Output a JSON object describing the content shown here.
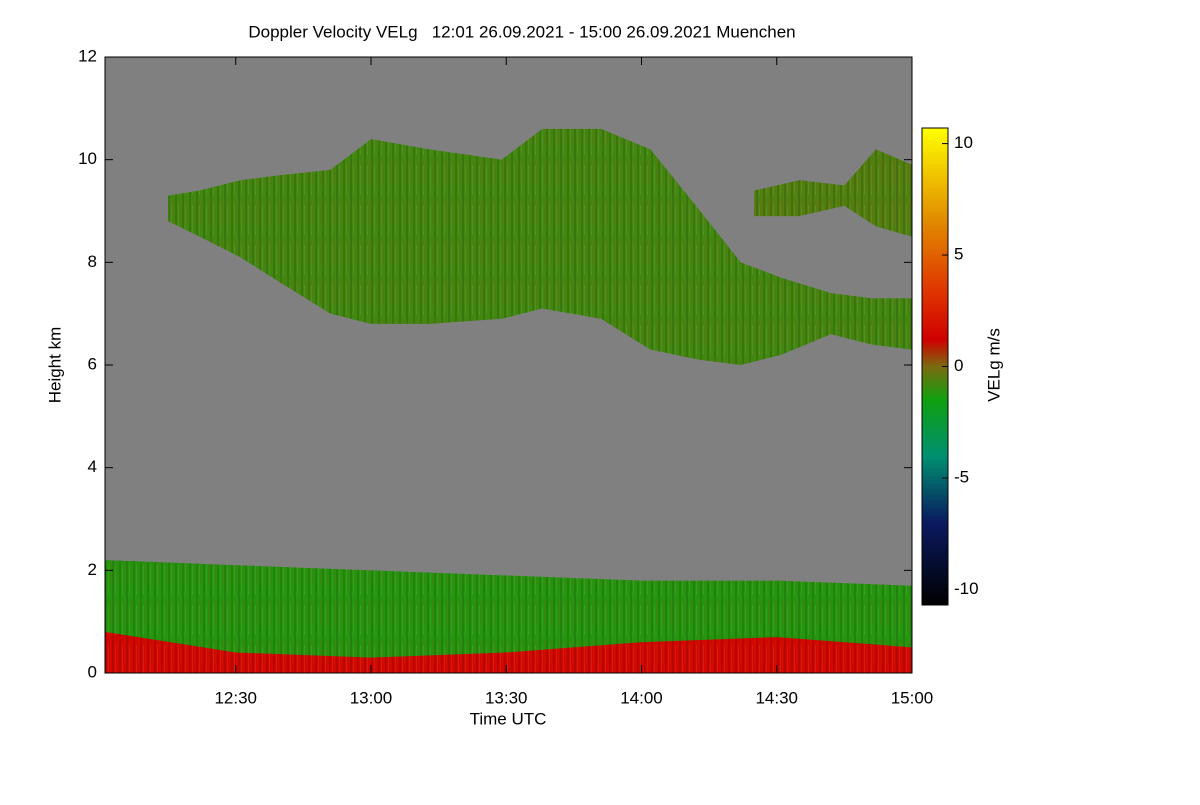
{
  "chart_data": {
    "type": "time-height",
    "title": "Doppler Velocity VELg   12:01 26.09.2021 - 15:00 26.09.2021 Muenchen",
    "x_label": "Time UTC",
    "y_label": "Height km",
    "colorbar_label": "VELg m/s",
    "xlim": [
      "12:01",
      "15:00"
    ],
    "xticks": [
      "12:30",
      "13:00",
      "13:30",
      "14:00",
      "14:30",
      "15:00"
    ],
    "ylim": [
      0,
      12
    ],
    "yticks": [
      0,
      2,
      4,
      6,
      8,
      10,
      12
    ],
    "clim": [
      -10.7,
      10.7
    ],
    "cticks": [
      -10,
      -5,
      0,
      5,
      10
    ],
    "colorscale": [
      {
        "value": -10.7,
        "color": "#000000"
      },
      {
        "value": -7,
        "color": "#0a1a60"
      },
      {
        "value": -4,
        "color": "#009070"
      },
      {
        "value": -1.5,
        "color": "#10a010"
      },
      {
        "value": 0,
        "color": "#7a6a10"
      },
      {
        "value": 1.2,
        "color": "#d00000"
      },
      {
        "value": 3.5,
        "color": "#e03800"
      },
      {
        "value": 6.5,
        "color": "#e08a00"
      },
      {
        "value": 10.7,
        "color": "#ffff00"
      }
    ],
    "background": "#808080",
    "regions": [
      {
        "x": [
          "12:15",
          "12:22",
          "12:31",
          "12:40",
          "12:51",
          "13:00",
          "13:13",
          "13:29",
          "13:38",
          "13:51",
          "14:02",
          "14:13",
          "14:22",
          "14:31",
          "14:42",
          "14:51",
          "15:00"
        ],
        "top": [
          9.3,
          9.4,
          9.6,
          9.7,
          9.8,
          10.4,
          10.2,
          10.0,
          10.6,
          10.6,
          10.2,
          9.0,
          8.0,
          7.7,
          7.4,
          7.3,
          7.3
        ],
        "base": [
          8.8,
          8.5,
          8.1,
          7.6,
          7.0,
          6.8,
          6.8,
          6.9,
          7.1,
          6.9,
          6.3,
          6.1,
          6.0,
          6.2,
          6.6,
          6.4,
          6.3
        ],
        "velocity": -0.8
      },
      {
        "x": [
          "14:25",
          "14:35",
          "14:45",
          "14:52",
          "15:00"
        ],
        "top": [
          9.4,
          9.6,
          9.5,
          10.2,
          9.9
        ],
        "base": [
          8.9,
          8.9,
          9.1,
          8.7,
          8.5
        ],
        "velocity": -0.6
      },
      {
        "x": [
          "12:01",
          "12:30",
          "13:00",
          "13:30",
          "14:00",
          "14:30",
          "15:00"
        ],
        "top": [
          2.2,
          2.1,
          2.0,
          1.9,
          1.8,
          1.8,
          1.7
        ],
        "base": [
          0,
          0,
          0,
          0,
          0,
          0,
          0
        ],
        "velocity": -1.2
      },
      {
        "x": [
          "12:01",
          "12:30",
          "13:00",
          "13:30",
          "14:00",
          "14:30",
          "15:00"
        ],
        "top": [
          0.8,
          0.4,
          0.3,
          0.4,
          0.6,
          0.7,
          0.5
        ],
        "base": [
          0,
          0,
          0,
          0,
          0,
          0,
          0
        ],
        "velocity": 1.5
      }
    ]
  }
}
